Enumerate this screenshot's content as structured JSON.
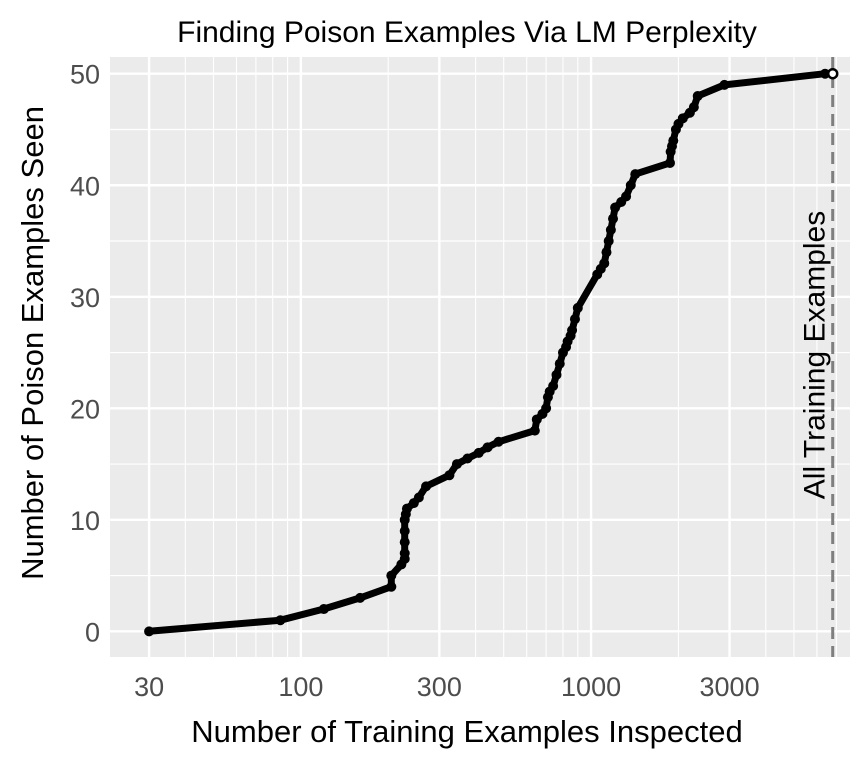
{
  "chart_data": {
    "type": "line",
    "title": "Finding Poison Examples Via LM Perplexity",
    "xlabel": "Number of Training Examples Inspected",
    "ylabel": "Number of Poison Examples Seen",
    "x_scale": "log10",
    "xlim": [
      22,
      7800
    ],
    "ylim": [
      -2.3,
      51.5
    ],
    "x_ticks": [
      30,
      100,
      300,
      1000,
      3000
    ],
    "x_tick_labels": [
      "30",
      "100",
      "300",
      "1000",
      "3000"
    ],
    "y_ticks": [
      0,
      10,
      20,
      30,
      40,
      50
    ],
    "y_tick_labels": [
      "0",
      "10",
      "20",
      "30",
      "40",
      "50"
    ],
    "grid": true,
    "colors": {
      "panel_background": "#ebebeb",
      "grid": "#ffffff",
      "line": "#000000",
      "reference_line": "#7f7f7f"
    },
    "reference_line": {
      "x": 6800,
      "label": "All Training Examples",
      "style": "dashed"
    },
    "series": [
      {
        "x": [
          30,
          85,
          120,
          160,
          205,
          205,
          222,
          228,
          228,
          228,
          228,
          228,
          230,
          232,
          245,
          255,
          270,
          325,
          345,
          375,
          410,
          440,
          480,
          640,
          650,
          680,
          700,
          710,
          720,
          740,
          760,
          780,
          800,
          820,
          830,
          850,
          860,
          880,
          900,
          1050,
          1080,
          1110,
          1130,
          1150,
          1170,
          1190,
          1210,
          1270,
          1320,
          1370,
          1420,
          1870,
          1880,
          1900,
          1920,
          1960,
          2000,
          2070,
          2190,
          2260,
          2330,
          2880,
          6400,
          6800
        ],
        "y": [
          0,
          1,
          2,
          3,
          4,
          5,
          6,
          6.5,
          7,
          8,
          9,
          10,
          10.5,
          11,
          11.5,
          12,
          13,
          14,
          15,
          15.5,
          16,
          16.5,
          17,
          18,
          19,
          19.5,
          20,
          21,
          21.5,
          22,
          23,
          24,
          25,
          25.5,
          26,
          26.5,
          27,
          28,
          29,
          32,
          32.5,
          33,
          34,
          35,
          36,
          37,
          38,
          38.5,
          39,
          40,
          41,
          42,
          43,
          43.5,
          44,
          45,
          45.5,
          46,
          46.5,
          47,
          48,
          49,
          50,
          50
        ]
      }
    ]
  }
}
